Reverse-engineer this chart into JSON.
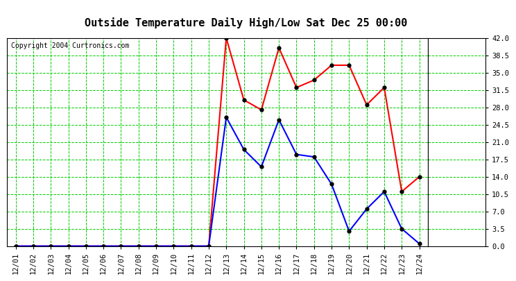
{
  "title": "Outside Temperature Daily High/Low Sat Dec 25 00:00",
  "copyright": "Copyright 2004 Curtronics.com",
  "background_color": "#ffffff",
  "plot_bg_color": "#ffffff",
  "grid_color": "#00cc00",
  "x_labels": [
    "12/01",
    "12/02",
    "12/03",
    "12/04",
    "12/05",
    "12/06",
    "12/07",
    "12/08",
    "12/09",
    "12/10",
    "12/11",
    "12/12",
    "12/13",
    "12/14",
    "12/15",
    "12/16",
    "12/17",
    "12/18",
    "12/19",
    "12/20",
    "12/21",
    "12/22",
    "12/23",
    "12/24"
  ],
  "high_values": [
    0.0,
    0.0,
    0.0,
    0.0,
    0.0,
    0.0,
    0.0,
    0.0,
    0.0,
    0.0,
    0.0,
    0.0,
    42.0,
    29.5,
    27.5,
    40.0,
    32.0,
    33.5,
    36.5,
    36.5,
    28.5,
    32.0,
    11.0,
    14.0
  ],
  "low_values": [
    0.0,
    0.0,
    0.0,
    0.0,
    0.0,
    0.0,
    0.0,
    0.0,
    0.0,
    0.0,
    0.0,
    0.0,
    26.0,
    19.5,
    16.0,
    25.5,
    18.5,
    18.0,
    12.5,
    3.0,
    7.5,
    11.0,
    3.5,
    0.5
  ],
  "high_color": "#ff0000",
  "low_color": "#0000ff",
  "marker_color": "#000000",
  "ylim": [
    0.0,
    42.0
  ],
  "yticks": [
    0.0,
    3.5,
    7.0,
    10.5,
    14.0,
    17.5,
    21.0,
    24.5,
    28.0,
    31.5,
    35.0,
    38.5,
    42.0
  ],
  "title_fontsize": 11,
  "copyright_fontsize": 7,
  "tick_fontsize": 7.5,
  "line_width": 1.5,
  "marker_size": 3.5
}
